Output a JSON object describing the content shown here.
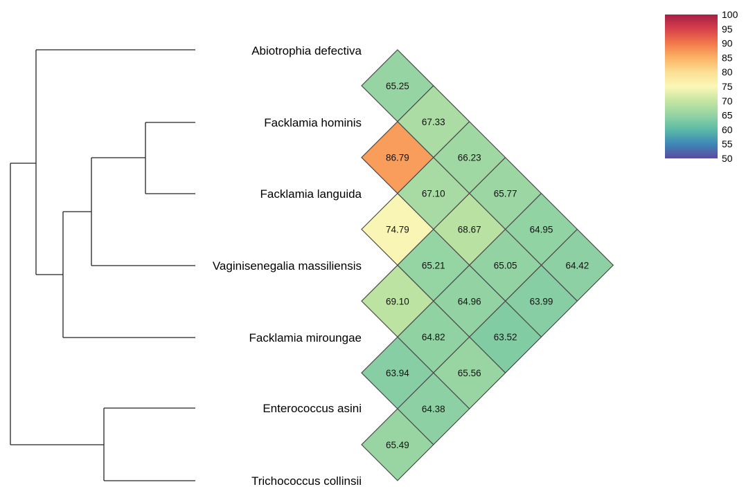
{
  "chart_data": {
    "type": "heatmap",
    "title": "",
    "taxa": [
      "Abiotrophia defectiva",
      "Facklamia hominis",
      "Facklamia languida",
      "Vaginisenegalia massiliensis",
      "Facklamia miroungae",
      "Enterococcus asini",
      "Trichococcus collinsii"
    ],
    "matrix": [
      [
        null,
        65.25,
        67.33,
        66.23,
        65.77,
        64.95,
        64.42
      ],
      [
        65.25,
        null,
        86.79,
        67.1,
        68.67,
        65.05,
        63.99
      ],
      [
        67.33,
        86.79,
        null,
        74.79,
        65.21,
        64.96,
        63.52
      ],
      [
        66.23,
        67.1,
        74.79,
        null,
        69.1,
        64.82,
        65.56
      ],
      [
        65.77,
        68.67,
        65.21,
        69.1,
        null,
        63.94,
        64.38
      ],
      [
        64.95,
        65.05,
        64.96,
        64.82,
        63.94,
        null,
        65.49
      ],
      [
        64.42,
        63.99,
        63.52,
        65.56,
        64.38,
        65.49,
        null
      ]
    ],
    "color_scale": {
      "min": 50,
      "max": 100,
      "ticks": [
        "100",
        "95",
        "90",
        "85",
        "80",
        "75",
        "70",
        "65",
        "60",
        "55",
        "50"
      ],
      "palette": "Spectral"
    },
    "dendrogram": {
      "type": "hierarchical-clustering",
      "merges": [
        [
          "Facklamia hominis",
          "Facklamia languida"
        ],
        [
          "Enterococcus asini",
          "Trichococcus collinsii"
        ],
        [
          "(Facklamia hominis, Facklamia languida)",
          "Vaginisenegalia massiliensis"
        ],
        [
          "(…Vaginisenegalia massiliensis)",
          "Facklamia miroungae"
        ],
        [
          "Abiotrophia defectiva",
          "(…Facklamia miroungae)"
        ],
        [
          "(Abiotrophia defectiva, …)",
          "(Enterococcus asini, Trichococcus collinsii)"
        ]
      ]
    }
  }
}
